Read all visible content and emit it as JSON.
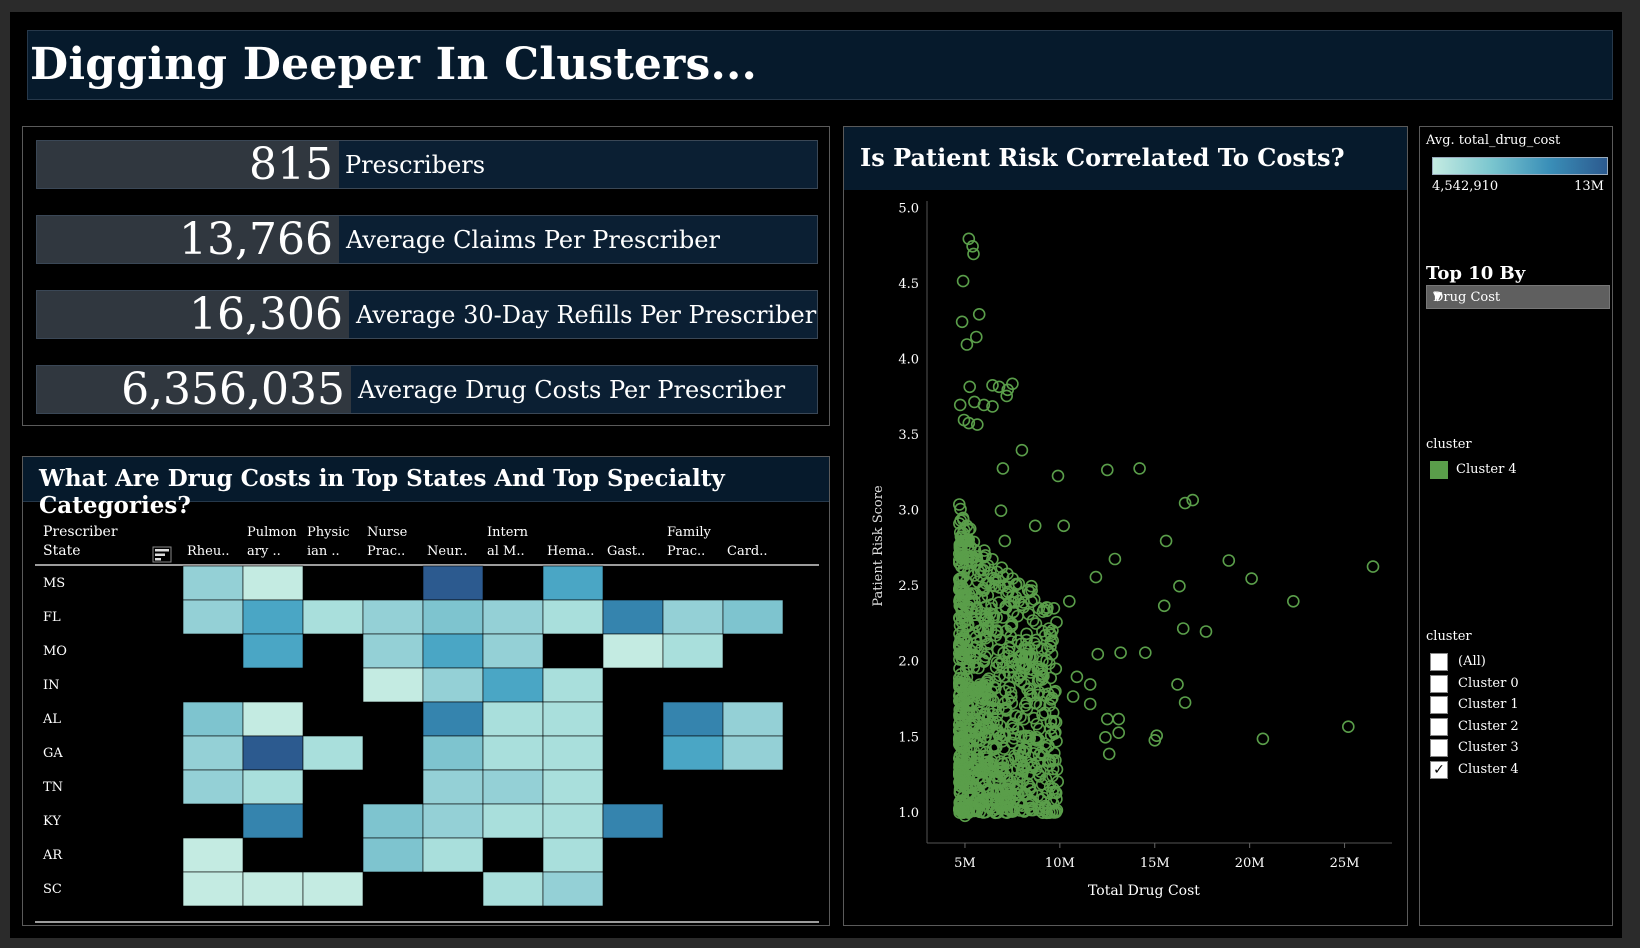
{
  "title": "Digging Deeper In Clusters...",
  "kpis": [
    {
      "value": "815",
      "label": "Prescribers"
    },
    {
      "value": "13,766",
      "label": "Average Claims Per Prescriber"
    },
    {
      "value": "16,306",
      "label": "Average 30-Day Refills Per Prescriber"
    },
    {
      "value": "6,356,035",
      "label": "Average Drug Costs Per Prescriber"
    }
  ],
  "heatmap": {
    "title": "What Are Drug Costs in Top States And Top Specialty Categories?",
    "row_header": [
      "Prescriber",
      "State"
    ],
    "sort_icon": "sort-icon",
    "columns": [
      [
        "",
        "Rheu.."
      ],
      [
        "Pulmon",
        "ary .."
      ],
      [
        "Physic",
        "ian .."
      ],
      [
        "Nurse",
        "Prac.."
      ],
      [
        "",
        "Neur.."
      ],
      [
        "Intern",
        "al M.."
      ],
      [
        "",
        "Hema.."
      ],
      [
        "",
        "Gast.."
      ],
      [
        "Family",
        "Prac.."
      ],
      [
        "",
        "Card.."
      ]
    ],
    "rows": [
      "MS",
      "FL",
      "MO",
      "IN",
      "AL",
      "GA",
      "TN",
      "KY",
      "AR",
      "SC"
    ],
    "color_scale": [
      "#c4ebe2",
      "#2c5a8f"
    ]
  },
  "chart_data": {
    "type": "scatter",
    "title": "Is Patient Risk Correlated To Costs?",
    "xlabel": "Total Drug Cost",
    "ylabel": "Patient Risk Score",
    "xlim": [
      3000000,
      27500000
    ],
    "ylim": [
      0.8,
      5.05
    ],
    "xticks": [
      5000000,
      10000000,
      15000000,
      20000000,
      25000000
    ],
    "xtick_labels": [
      "5M",
      "10M",
      "15M",
      "20M",
      "25M"
    ],
    "yticks": [
      1.0,
      1.5,
      2.0,
      2.5,
      3.0,
      3.5,
      4.0,
      4.5,
      5.0
    ],
    "ytick_labels": [
      "1.0",
      "1.5",
      "2.0",
      "2.5",
      "3.0",
      "3.5",
      "4.0",
      "4.5",
      "5.0"
    ],
    "marker": "hollow-circle",
    "color": "#5a9e4a",
    "series": [
      {
        "name": "Cluster 4",
        "points": [
          [
            5200000,
            4.8
          ],
          [
            5400000,
            4.75
          ],
          [
            5450000,
            4.7
          ],
          [
            4900000,
            4.52
          ],
          [
            4850000,
            4.25
          ],
          [
            5750000,
            4.3
          ],
          [
            5600000,
            4.15
          ],
          [
            5100000,
            4.1
          ],
          [
            5250000,
            3.82
          ],
          [
            6450000,
            3.83
          ],
          [
            7500000,
            3.84
          ],
          [
            6800000,
            3.82
          ],
          [
            7250000,
            3.8
          ],
          [
            4750000,
            3.7
          ],
          [
            5500000,
            3.72
          ],
          [
            6000000,
            3.7
          ],
          [
            6450000,
            3.69
          ],
          [
            7200000,
            3.76
          ],
          [
            5200000,
            3.58
          ],
          [
            5650000,
            3.57
          ],
          [
            4950000,
            3.6
          ],
          [
            8000000,
            3.4
          ],
          [
            7000000,
            3.28
          ],
          [
            12500000,
            3.27
          ],
          [
            14200000,
            3.28
          ],
          [
            9900000,
            3.23
          ],
          [
            16600000,
            3.05
          ],
          [
            17000000,
            3.07
          ],
          [
            10200000,
            2.9
          ],
          [
            15600000,
            2.8
          ],
          [
            12900000,
            2.68
          ],
          [
            18900000,
            2.67
          ],
          [
            26500000,
            2.63
          ],
          [
            20100000,
            2.55
          ],
          [
            11900000,
            2.56
          ],
          [
            16300000,
            2.5
          ],
          [
            22300000,
            2.4
          ],
          [
            15500000,
            2.37
          ],
          [
            16500000,
            2.22
          ],
          [
            17700000,
            2.2
          ],
          [
            13200000,
            2.06
          ],
          [
            14500000,
            2.06
          ],
          [
            12000000,
            2.05
          ],
          [
            16200000,
            1.85
          ],
          [
            16600000,
            1.73
          ],
          [
            11600000,
            1.85
          ],
          [
            10900000,
            1.9
          ],
          [
            11600000,
            1.72
          ],
          [
            10700000,
            1.77
          ],
          [
            12500000,
            1.62
          ],
          [
            13100000,
            1.62
          ],
          [
            13100000,
            1.53
          ],
          [
            12400000,
            1.5
          ],
          [
            12600000,
            1.39
          ],
          [
            15100000,
            1.51
          ],
          [
            15000000,
            1.48
          ],
          [
            25200000,
            1.57
          ],
          [
            20700000,
            1.49
          ],
          [
            4900000,
            2.85
          ],
          [
            5100000,
            2.9
          ],
          [
            5500000,
            2.4
          ],
          [
            6000000,
            2.0
          ],
          [
            6500000,
            1.6
          ],
          [
            7000000,
            1.3
          ],
          [
            8000000,
            1.25
          ],
          [
            9000000,
            1.4
          ],
          [
            5300000,
            1.1
          ],
          [
            5800000,
            1.05
          ],
          [
            6600000,
            1.0
          ],
          [
            7600000,
            1.03
          ],
          [
            5000000,
            0.98
          ],
          [
            4800000,
            1.2
          ],
          [
            5200000,
            1.8
          ],
          [
            5700000,
            2.6
          ],
          [
            6200000,
            2.2
          ],
          [
            7100000,
            2.8
          ],
          [
            8500000,
            2.5
          ],
          [
            9500000,
            2.1
          ],
          [
            8900000,
            1.8
          ],
          [
            7800000,
            1.55
          ],
          [
            9800000,
            1.6
          ],
          [
            10500000,
            2.4
          ],
          [
            8700000,
            2.9
          ],
          [
            6900000,
            3.0
          ],
          [
            7400000,
            2.4
          ]
        ]
      }
    ]
  },
  "color_legend": {
    "title": "Avg. total_drug_cost",
    "min_label": "4,542,910",
    "max_label": "13M"
  },
  "top10": {
    "title": "Top 10 By",
    "selected": "Drug Cost"
  },
  "cluster_legend": {
    "title": "cluster",
    "item": "Cluster 4",
    "color": "#5a9e4a"
  },
  "cluster_filter": {
    "title": "cluster",
    "options": [
      {
        "label": "(All)",
        "checked": false
      },
      {
        "label": "Cluster 0",
        "checked": false
      },
      {
        "label": "Cluster 1",
        "checked": false
      },
      {
        "label": "Cluster 2",
        "checked": false
      },
      {
        "label": "Cluster 3",
        "checked": false
      },
      {
        "label": "Cluster 4",
        "checked": true
      }
    ]
  }
}
